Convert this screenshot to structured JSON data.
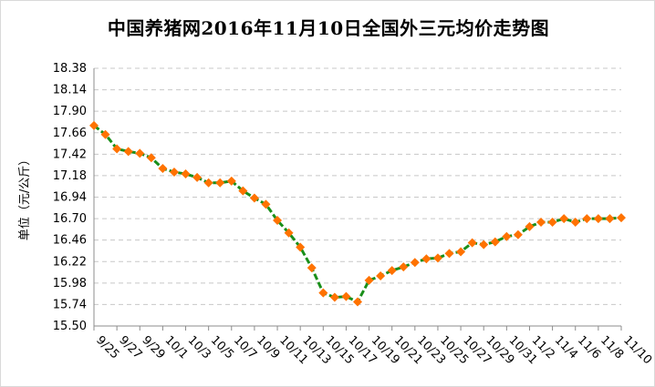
{
  "chart_data": {
    "type": "line",
    "title": "中国养猪网2016年11月10日全国外三元均价走势图",
    "ylabel": "单位（元/公斤）",
    "xlabel": "",
    "ylim": [
      15.5,
      18.38
    ],
    "yticks": [
      "15.50",
      "15.74",
      "15.98",
      "16.22",
      "16.46",
      "16.70",
      "16.94",
      "17.18",
      "17.42",
      "17.66",
      "17.90",
      "18.14",
      "18.38"
    ],
    "x_tick_labels": [
      "9/25",
      "9/27",
      "9/29",
      "10/1",
      "10/3",
      "10/5",
      "10/7",
      "10/9",
      "10/11",
      "10/13",
      "10/15",
      "10/17",
      "10/19",
      "10/21",
      "10/23",
      "10/25",
      "10/27",
      "10/29",
      "10/31",
      "11/2",
      "11/4",
      "11/6",
      "11/8",
      "11/10"
    ],
    "x": [
      "9/25",
      "9/26",
      "9/27",
      "9/28",
      "9/29",
      "9/30",
      "10/1",
      "10/2",
      "10/3",
      "10/4",
      "10/5",
      "10/6",
      "10/7",
      "10/8",
      "10/9",
      "10/10",
      "10/11",
      "10/12",
      "10/13",
      "10/14",
      "10/15",
      "10/16",
      "10/17",
      "10/18",
      "10/19",
      "10/20",
      "10/21",
      "10/22",
      "10/23",
      "10/24",
      "10/25",
      "10/26",
      "10/27",
      "10/28",
      "10/29",
      "10/30",
      "10/31",
      "11/1",
      "11/2",
      "11/3",
      "11/4",
      "11/5",
      "11/6",
      "11/7",
      "11/8",
      "11/9",
      "11/10"
    ],
    "series": [
      {
        "values": [
          17.74,
          17.64,
          17.48,
          17.45,
          17.43,
          17.38,
          17.26,
          17.22,
          17.2,
          17.16,
          17.1,
          17.1,
          17.12,
          17.01,
          16.93,
          16.86,
          16.68,
          16.54,
          16.38,
          16.15,
          15.87,
          15.82,
          15.83,
          15.77,
          16.01,
          16.06,
          16.12,
          16.16,
          16.21,
          16.25,
          16.26,
          16.31,
          16.33,
          16.43,
          16.41,
          16.44,
          16.5,
          16.52,
          16.61,
          16.66,
          16.66,
          16.7,
          16.66,
          16.7,
          16.7,
          16.7,
          16.71
        ],
        "line_color": "#1a8f1a",
        "marker_color": "#ff7200"
      }
    ],
    "grid": true,
    "legend": "none"
  }
}
